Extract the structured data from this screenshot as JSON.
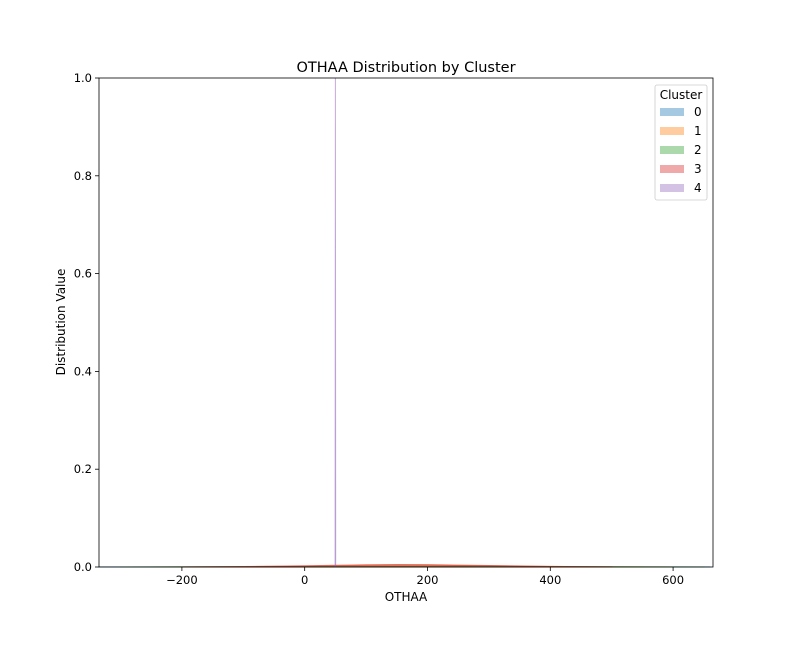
{
  "chart_data": {
    "type": "area",
    "title": "OTHAA Distribution by Cluster",
    "xlabel": "OTHAA",
    "ylabel": "Distribution Value",
    "xlim": [
      -335,
      665
    ],
    "ylim": [
      0,
      1.0
    ],
    "x_ticks": [
      -200,
      0,
      200,
      400,
      600
    ],
    "x_tick_labels": [
      "−200",
      "0",
      "200",
      "400",
      "600"
    ],
    "y_ticks": [
      0.0,
      0.2,
      0.4,
      0.6,
      0.8,
      1.0
    ],
    "y_tick_labels": [
      "0.0",
      "0.2",
      "0.4",
      "0.6",
      "0.8",
      "1.0"
    ],
    "grid": false,
    "legend": {
      "title": "Cluster",
      "placement": "top-right"
    },
    "series": [
      {
        "name": "0",
        "color": "#1f77b4",
        "x": [
          -335,
          -200,
          -100,
          0,
          100,
          200,
          300,
          400,
          500,
          600,
          660
        ],
        "values": [
          0.0003,
          0.0005,
          0.0007,
          0.0008,
          0.0008,
          0.0008,
          0.0007,
          0.0006,
          0.0004,
          0.0003,
          0.0002
        ]
      },
      {
        "name": "1",
        "color": "#ff7f0e",
        "x": [
          -250,
          -100,
          0,
          100,
          200,
          300,
          400,
          500,
          600
        ],
        "values": [
          0.0001,
          0.0008,
          0.0018,
          0.0034,
          0.0036,
          0.0025,
          0.0014,
          0.0005,
          0.0001
        ]
      },
      {
        "name": "2",
        "color": "#2ca02c",
        "x": [
          -300,
          -200,
          -100,
          0,
          100,
          200,
          300,
          400,
          500,
          600,
          650
        ],
        "values": [
          0.0001,
          0.0003,
          0.0006,
          0.001,
          0.0014,
          0.0015,
          0.0013,
          0.001,
          0.0006,
          0.0003,
          0.0001
        ]
      },
      {
        "name": "3",
        "color": "#d62728",
        "x": [
          -200,
          -100,
          0,
          50,
          100,
          150,
          200,
          300,
          400,
          500
        ],
        "values": [
          0.0001,
          0.001,
          0.0025,
          0.0035,
          0.0045,
          0.0052,
          0.0048,
          0.003,
          0.0014,
          0.0003
        ]
      },
      {
        "name": "4",
        "color": "#9467bd",
        "x": [
          49.5,
          50,
          50.5
        ],
        "values": [
          0.0,
          1.0,
          0.0
        ]
      }
    ]
  }
}
